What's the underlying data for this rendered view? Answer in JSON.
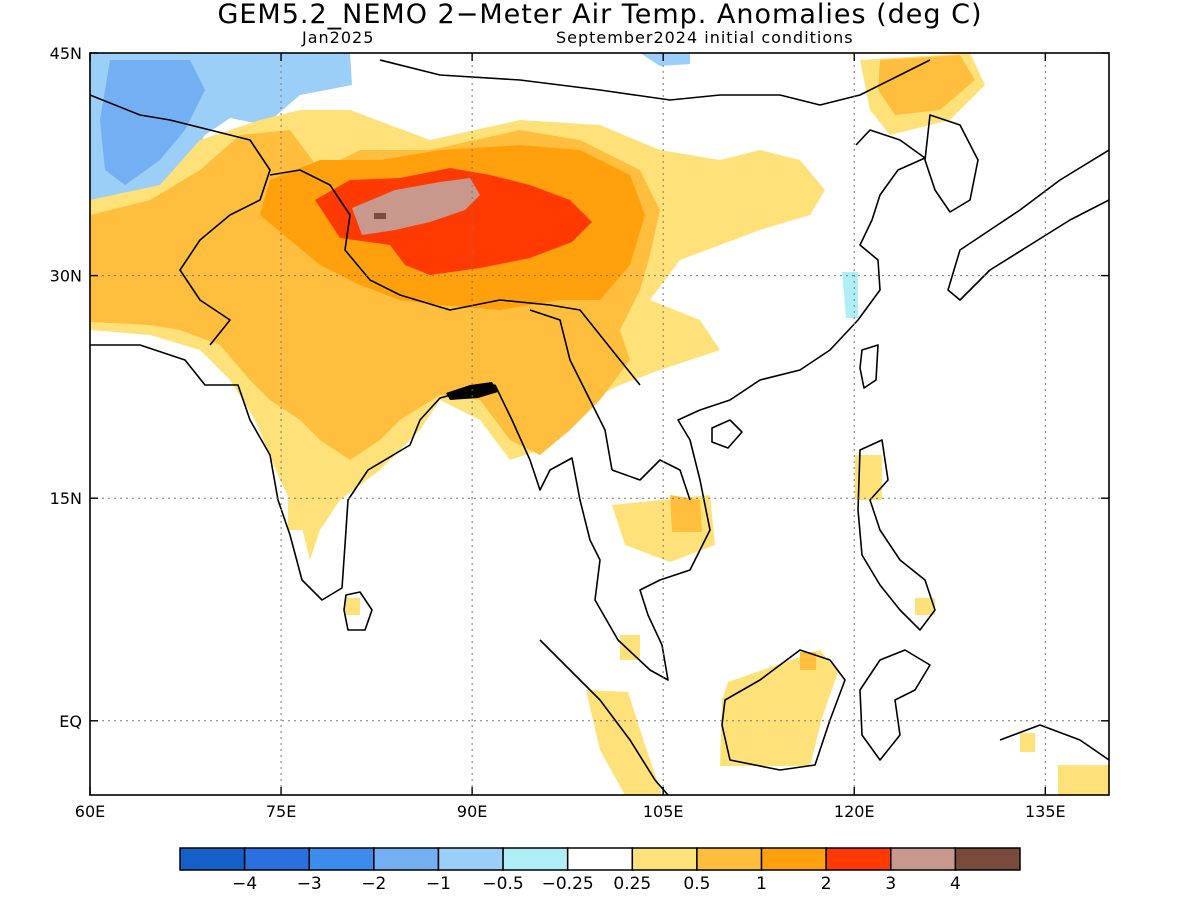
{
  "title": "GEM5.2_NEMO 2−Meter Air Temp. Anomalies (deg C)",
  "subtitle_left": "Jan2025",
  "subtitle_right": "September2024 initial conditions",
  "map": {
    "lon_range": [
      60,
      140
    ],
    "lat_range": [
      -5,
      45
    ],
    "grid_lines": "dotted",
    "lon_ticks": [
      {
        "value": 60,
        "label": "60E"
      },
      {
        "value": 75,
        "label": "75E"
      },
      {
        "value": 90,
        "label": "90E"
      },
      {
        "value": 105,
        "label": "105E"
      },
      {
        "value": 120,
        "label": "120E"
      },
      {
        "value": 135,
        "label": "135E"
      }
    ],
    "lat_ticks": [
      {
        "value": 45,
        "label": "45N"
      },
      {
        "value": 30,
        "label": "30N"
      },
      {
        "value": 15,
        "label": "15N"
      },
      {
        "value": 0,
        "label": "EQ"
      }
    ]
  },
  "colorbar": {
    "colors": [
      "#1560c8",
      "#2a70e0",
      "#3c8cee",
      "#74aff3",
      "#9bcff7",
      "#b0eef7",
      "#ffffff",
      "#ffe17a",
      "#ffbe3e",
      "#ffa00c",
      "#ff3a00",
      "#c8988c",
      "#7a4a3c"
    ],
    "labels": [
      "−4",
      "−3",
      "−2",
      "−1",
      "−0.5",
      "−0.25",
      "0.25",
      "0.5",
      "1",
      "2",
      "3",
      "4"
    ]
  }
}
